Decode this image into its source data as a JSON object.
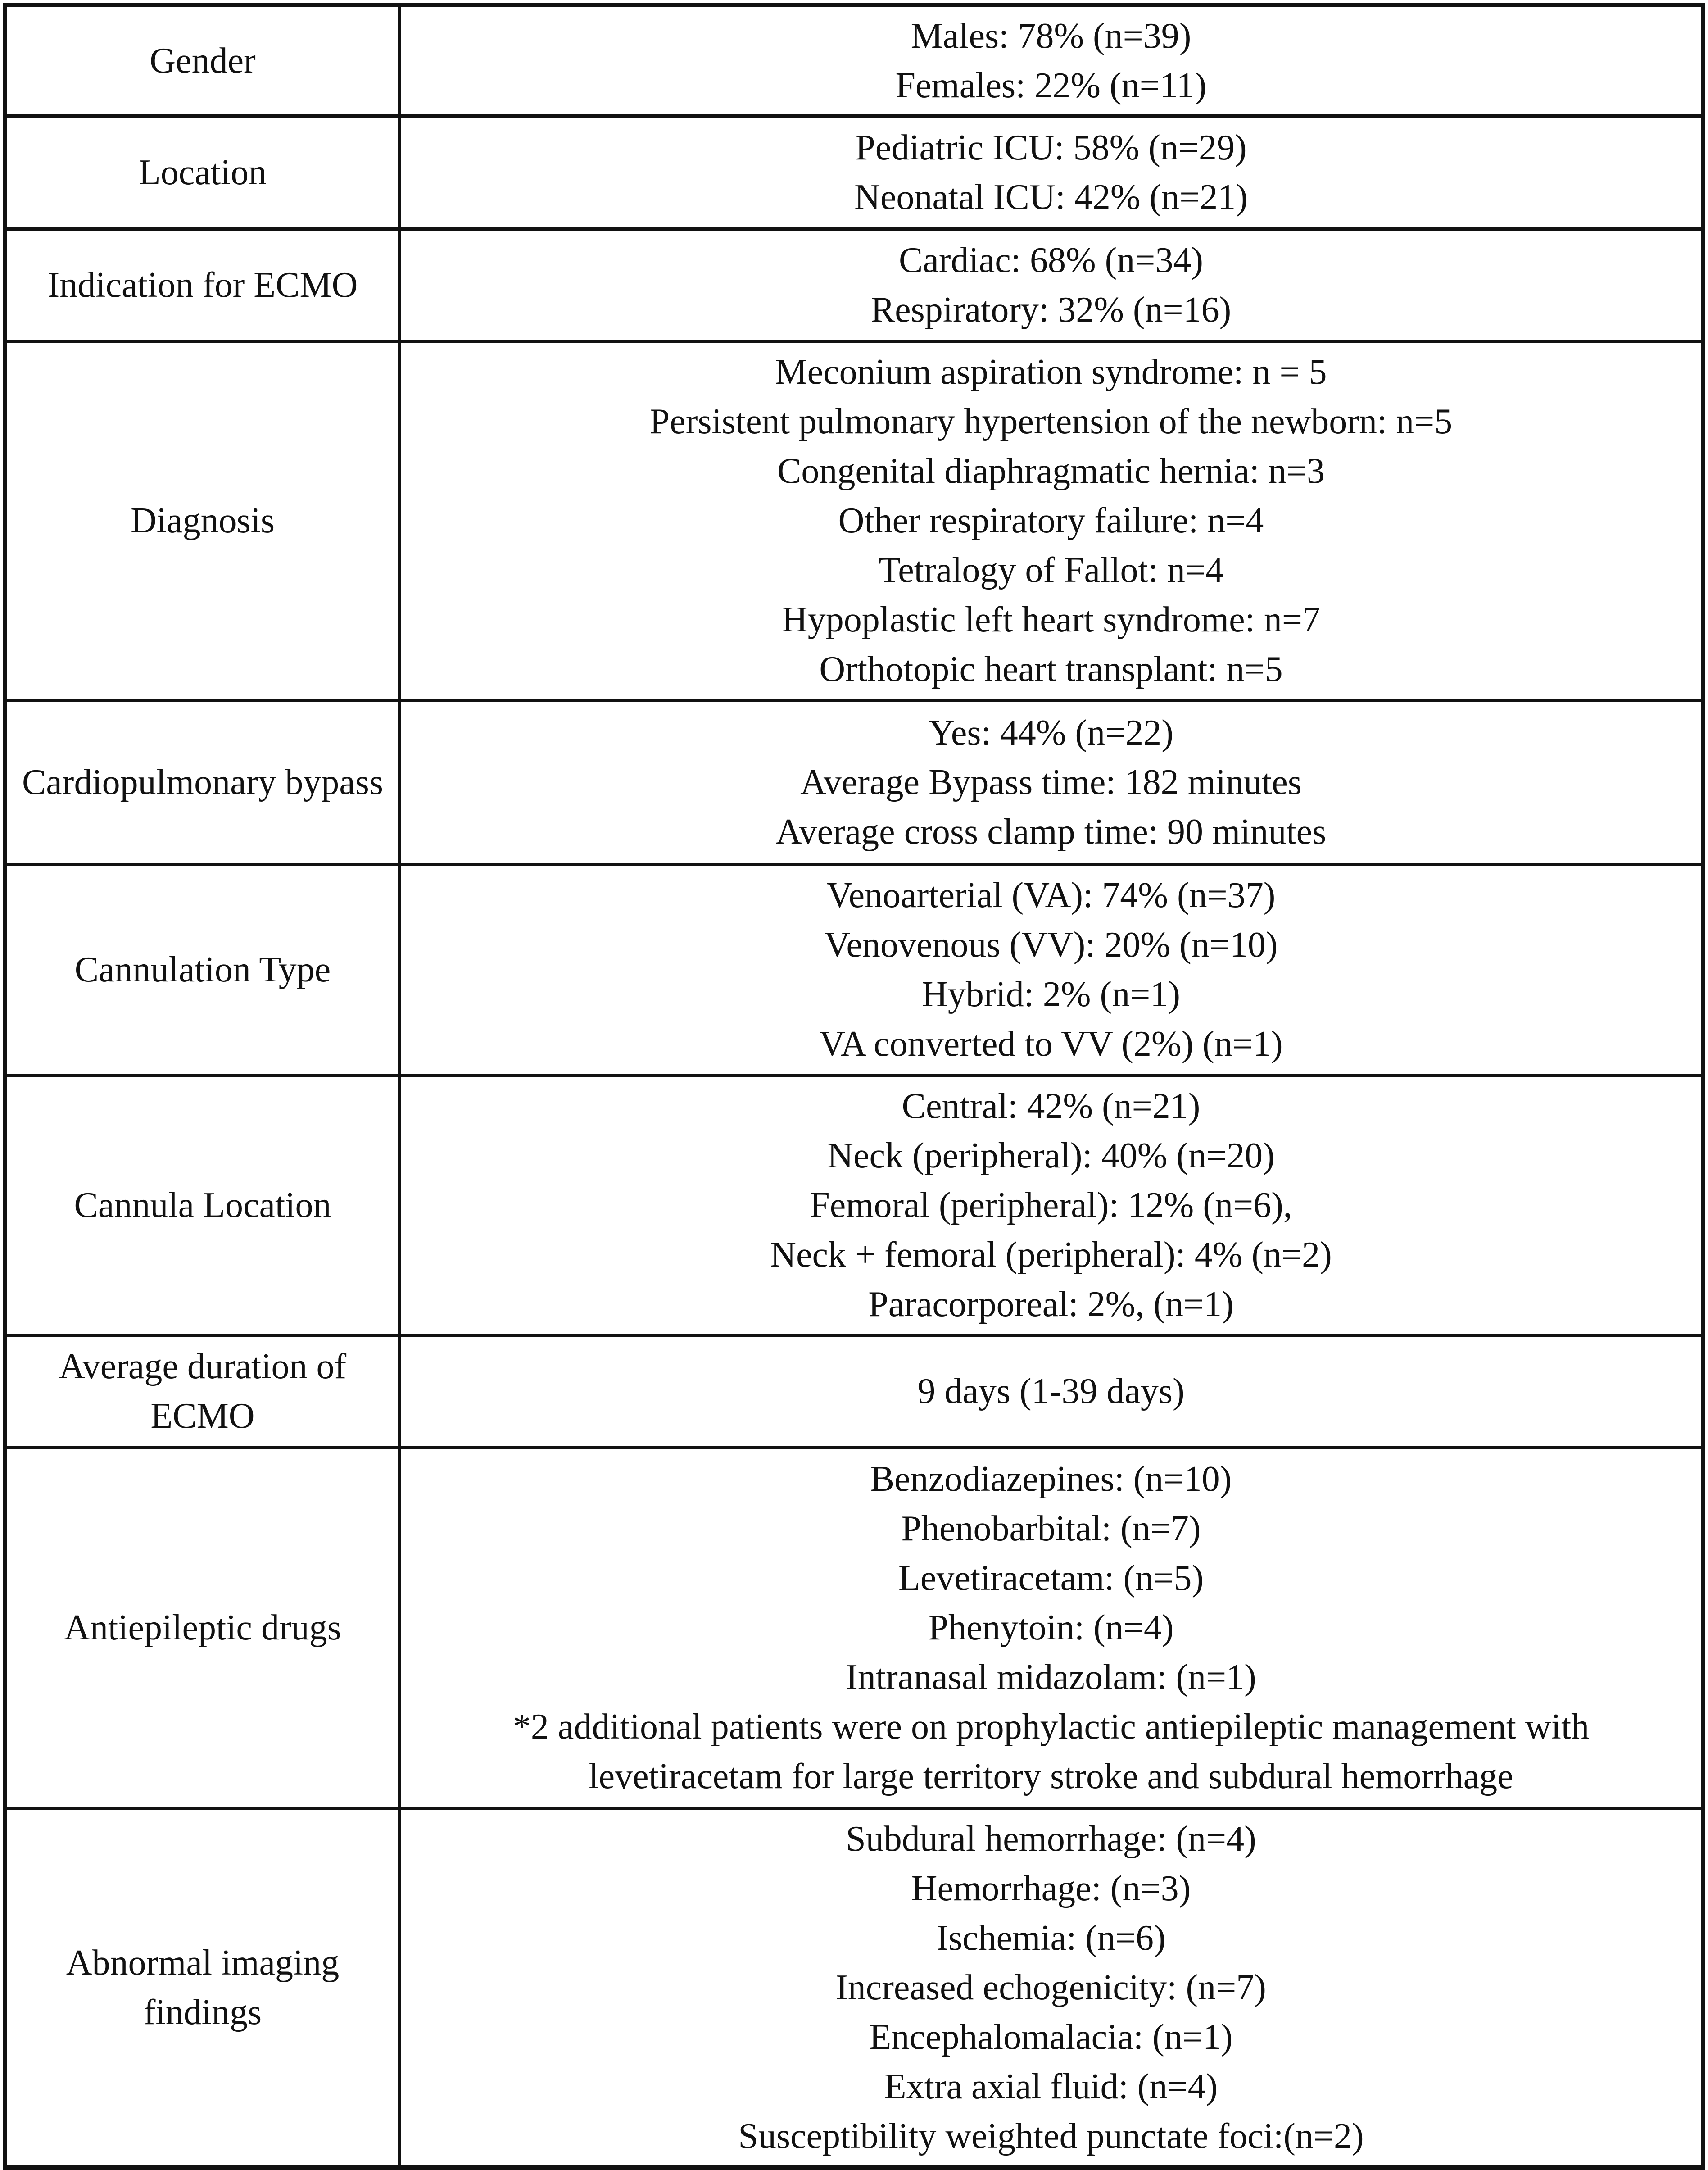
{
  "table": {
    "rows": [
      {
        "label": "Gender",
        "lines": [
          "Males: 78% (n=39)",
          "Females: 22% (n=11)"
        ]
      },
      {
        "label": "Location",
        "lines": [
          "Pediatric ICU: 58% (n=29)",
          "Neonatal ICU: 42% (n=21)"
        ]
      },
      {
        "label": "Indication for ECMO",
        "lines": [
          "Cardiac: 68% (n=34)",
          "Respiratory: 32% (n=16)"
        ]
      },
      {
        "label": "Diagnosis",
        "lines": [
          "Meconium aspiration syndrome: n = 5",
          "Persistent pulmonary hypertension of the newborn: n=5",
          "Congenital diaphragmatic hernia: n=3",
          "Other respiratory failure: n=4",
          "Tetralogy of Fallot: n=4",
          "Hypoplastic left heart syndrome: n=7",
          "Orthotopic heart transplant: n=5"
        ]
      },
      {
        "label": "Cardiopulmonary bypass",
        "lines": [
          "Yes: 44% (n=22)",
          "Average Bypass time: 182 minutes",
          "Average cross clamp time: 90 minutes"
        ]
      },
      {
        "label": "Cannulation Type",
        "lines": [
          "Venoarterial (VA): 74% (n=37)",
          "Venovenous (VV): 20% (n=10)",
          "Hybrid: 2% (n=1)",
          "VA converted to VV (2%) (n=1)"
        ]
      },
      {
        "label": "Cannula Location",
        "lines": [
          "Central: 42% (n=21)",
          "Neck (peripheral): 40% (n=20)",
          "Femoral (peripheral): 12% (n=6),",
          "Neck + femoral (peripheral): 4% (n=2)",
          "Paracorporeal: 2%, (n=1)"
        ]
      },
      {
        "label": "Average duration of ECMO",
        "lines": [
          "9 days (1-39 days)"
        ]
      },
      {
        "label": "Antiepileptic drugs",
        "lines": [
          "Benzodiazepines: (n=10)",
          "Phenobarbital: (n=7)",
          "Levetiracetam: (n=5)",
          "Phenytoin: (n=4)",
          "Intranasal midazolam: (n=1)",
          "*2 additional patients were on prophylactic antiepileptic management with",
          "levetiracetam for large territory stroke and subdural hemorrhage"
        ]
      },
      {
        "label": "Abnormal imaging findings",
        "lines": [
          "Subdural hemorrhage: (n=4)",
          "Hemorrhage: (n=3)",
          "Ischemia: (n=6)",
          "Increased echogenicity: (n=7)",
          "Encephalomalacia: (n=1)",
          "Extra axial fluid: (n=4)",
          "Susceptibility weighted punctate foci:(n=2)"
        ]
      }
    ]
  }
}
